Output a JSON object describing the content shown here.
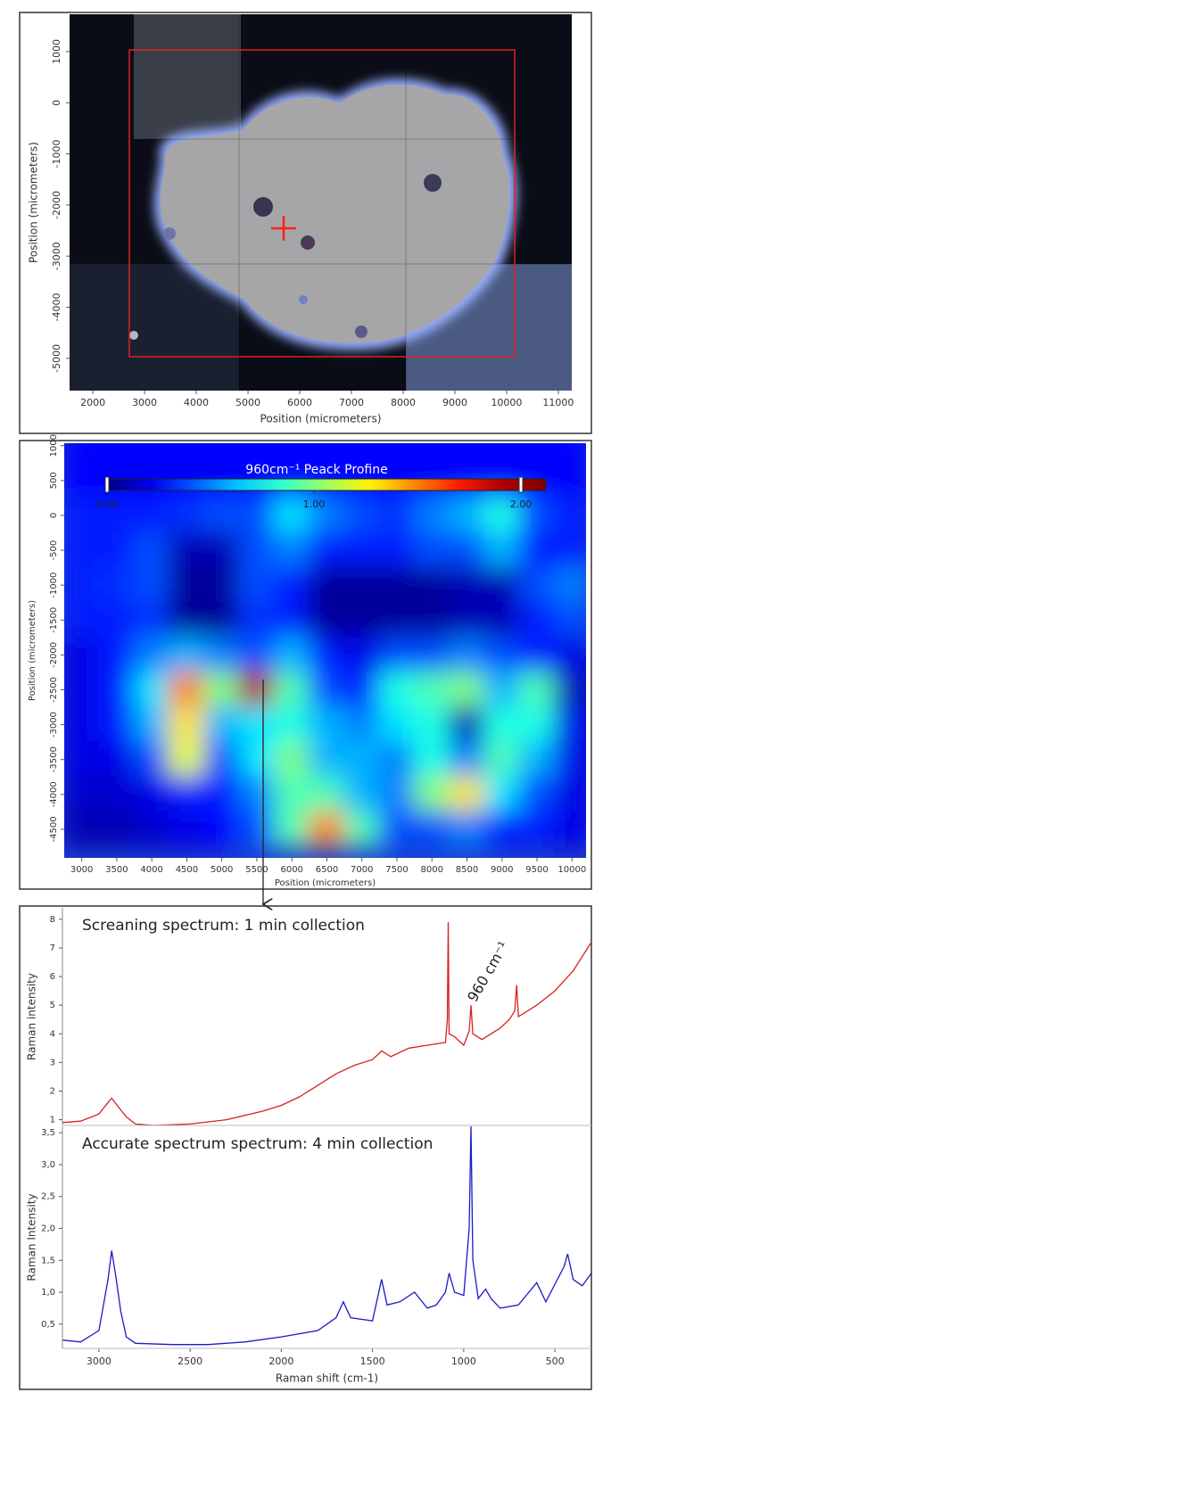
{
  "chart_data": [
    {
      "type": "image",
      "xlabel": "Position (micrometers)",
      "ylabel": "Position (micrometers)",
      "xlim": [
        1550,
        11260
      ],
      "ylim": [
        -5630,
        1730
      ],
      "xticks": [
        2000,
        3000,
        4000,
        5000,
        6000,
        7000,
        8000,
        9000,
        10000,
        11000
      ],
      "yticks": [
        1000,
        0,
        -1000,
        -2000,
        -3000,
        -4000,
        -5000
      ]
    },
    {
      "type": "heatmap",
      "title": "960cm⁻¹ Peack Profine",
      "xlabel": "Position (micrometers)",
      "ylabel": "Position (micrometers)",
      "xlim": [
        2750,
        10200
      ],
      "ylim": [
        -4910,
        1035
      ],
      "xticks": [
        3000,
        3500,
        4000,
        4500,
        5000,
        5500,
        6000,
        6500,
        7000,
        7500,
        8000,
        8500,
        9000,
        9500,
        10000
      ],
      "yticks": [
        1000,
        500,
        0,
        -500,
        -1000,
        -1500,
        -2000,
        -2500,
        -3000,
        -3500,
        -4000,
        -4500
      ],
      "x": [
        3000,
        3500,
        4000,
        4500,
        5000,
        5500,
        6000,
        6500,
        7000,
        7500,
        8000,
        8500,
        9000,
        9500,
        10000
      ],
      "y": [
        1000,
        500,
        0,
        -500,
        -1000,
        -1500,
        -2000,
        -2500,
        -3000,
        -3500,
        -4000,
        -4500
      ],
      "values": [
        [
          0.25,
          0.25,
          0.25,
          0.25,
          0.25,
          0.25,
          0.25,
          0.25,
          0.25,
          0.25,
          0.25,
          0.25,
          0.25,
          0.25,
          0.25
        ],
        [
          0.25,
          0.25,
          0.25,
          0.25,
          0.25,
          0.25,
          0.25,
          0.25,
          0.25,
          0.25,
          0.25,
          0.25,
          0.25,
          0.25,
          0.25
        ],
        [
          0.3,
          0.3,
          0.3,
          0.35,
          0.4,
          0.4,
          0.7,
          0.5,
          0.4,
          0.35,
          0.5,
          0.6,
          0.8,
          0.4,
          0.3
        ],
        [
          0.3,
          0.3,
          0.4,
          0.1,
          0.1,
          0.4,
          0.5,
          0.3,
          0.3,
          0.3,
          0.4,
          0.4,
          0.6,
          0.3,
          0.3
        ],
        [
          0.3,
          0.35,
          0.4,
          0.05,
          0.05,
          0.4,
          0.3,
          0.05,
          0.05,
          0.05,
          0.05,
          0.1,
          0.1,
          0.4,
          0.5
        ],
        [
          0.3,
          0.3,
          0.35,
          0.05,
          0.05,
          0.35,
          0.3,
          0.05,
          0.05,
          0.05,
          0.05,
          0.1,
          0.1,
          0.3,
          0.4
        ],
        [
          0.2,
          0.3,
          0.5,
          0.6,
          0.5,
          0.4,
          0.6,
          0.3,
          0.2,
          0.4,
          0.4,
          0.5,
          0.4,
          0.3,
          0.2
        ],
        [
          0.2,
          0.3,
          0.7,
          1.5,
          1.0,
          1.9,
          0.9,
          0.4,
          0.3,
          0.8,
          0.9,
          1.0,
          0.6,
          0.9,
          0.1
        ],
        [
          0.2,
          0.3,
          0.6,
          1.3,
          0.6,
          0.7,
          0.8,
          0.6,
          0.5,
          0.7,
          0.8,
          0.1,
          0.8,
          0.8,
          0.2
        ],
        [
          0.2,
          0.2,
          0.4,
          1.2,
          0.4,
          0.7,
          1.0,
          0.6,
          0.6,
          0.5,
          0.8,
          0.5,
          0.9,
          0.6,
          0.2
        ],
        [
          0.15,
          0.15,
          0.2,
          0.3,
          0.3,
          0.5,
          0.9,
          0.9,
          0.6,
          0.5,
          1.0,
          1.3,
          0.7,
          0.4,
          0.2
        ],
        [
          0.1,
          0.1,
          0.15,
          0.2,
          0.25,
          0.4,
          0.9,
          1.5,
          0.9,
          0.4,
          0.4,
          0.5,
          0.3,
          0.3,
          0.2
        ]
      ],
      "colorbar_lim": [
        0,
        2.12
      ],
      "colorbar_ticks": [
        {
          "value": 0,
          "label": "0.00"
        },
        {
          "value": 1,
          "label": "1.00"
        },
        {
          "value": 2,
          "label": "2.00"
        }
      ]
    },
    {
      "type": "line",
      "title": "Screaning spectrum: 1 min collection",
      "annotation": "960 cm⁻¹",
      "ylabel": "Raman intensity",
      "color": "#d92020",
      "xlim": [
        3200,
        300
      ],
      "ylim": [
        0.8,
        8.4
      ],
      "yticks": [
        1,
        2,
        3,
        4,
        5,
        6,
        7,
        8
      ],
      "x": [
        3200,
        3100,
        3000,
        2950,
        2930,
        2900,
        2850,
        2800,
        2700,
        2500,
        2300,
        2100,
        2000,
        1900,
        1800,
        1700,
        1600,
        1500,
        1450,
        1400,
        1300,
        1200,
        1100,
        1090,
        1085,
        1080,
        1050,
        1000,
        970,
        960,
        950,
        900,
        800,
        750,
        720,
        710,
        700,
        600,
        500,
        400,
        300
      ],
      "values": [
        0.9,
        0.95,
        1.2,
        1.6,
        1.75,
        1.5,
        1.1,
        0.85,
        0.8,
        0.85,
        1.0,
        1.3,
        1.5,
        1.8,
        2.2,
        2.6,
        2.9,
        3.1,
        3.4,
        3.2,
        3.5,
        3.6,
        3.7,
        4.5,
        7.9,
        4.0,
        3.9,
        3.6,
        4.1,
        5.0,
        4.0,
        3.8,
        4.2,
        4.5,
        4.8,
        5.7,
        4.6,
        5.0,
        5.5,
        6.2,
        7.2
      ]
    },
    {
      "type": "line",
      "title": "Accurate spectrum spectrum: 4 min collection",
      "ylabel": "Raman Intensity",
      "xlabel": "Raman shift (cm-1)",
      "color": "#1a1ac8",
      "xlim": [
        3200,
        300
      ],
      "ylim": [
        0.12,
        3.6
      ],
      "xticks": [
        3000,
        2500,
        2000,
        1500,
        1000,
        500
      ],
      "yticks": [
        {
          "value": 0.5,
          "label": "0,5"
        },
        {
          "value": 1,
          "label": "1,0"
        },
        {
          "value": 1.5,
          "label": "1,5"
        },
        {
          "value": 2,
          "label": "2,0"
        },
        {
          "value": 2.5,
          "label": "2,5"
        },
        {
          "value": 3,
          "label": "3,0"
        },
        {
          "value": 3.5,
          "label": "3,5"
        }
      ],
      "x": [
        3200,
        3100,
        3000,
        2950,
        2930,
        2910,
        2880,
        2850,
        2800,
        2600,
        2400,
        2200,
        2000,
        1800,
        1700,
        1660,
        1620,
        1500,
        1450,
        1420,
        1350,
        1270,
        1200,
        1150,
        1100,
        1080,
        1050,
        1000,
        970,
        960,
        950,
        920,
        880,
        850,
        800,
        700,
        600,
        550,
        450,
        430,
        400,
        350,
        300
      ],
      "values": [
        0.25,
        0.22,
        0.4,
        1.2,
        1.65,
        1.3,
        0.7,
        0.3,
        0.2,
        0.18,
        0.18,
        0.22,
        0.3,
        0.4,
        0.6,
        0.85,
        0.6,
        0.55,
        1.2,
        0.8,
        0.85,
        1.0,
        0.75,
        0.8,
        1.0,
        1.3,
        1.0,
        0.95,
        2.0,
        3.6,
        1.5,
        0.9,
        1.05,
        0.9,
        0.75,
        0.8,
        1.15,
        0.85,
        1.4,
        1.6,
        1.2,
        1.1,
        1.3
      ]
    }
  ]
}
